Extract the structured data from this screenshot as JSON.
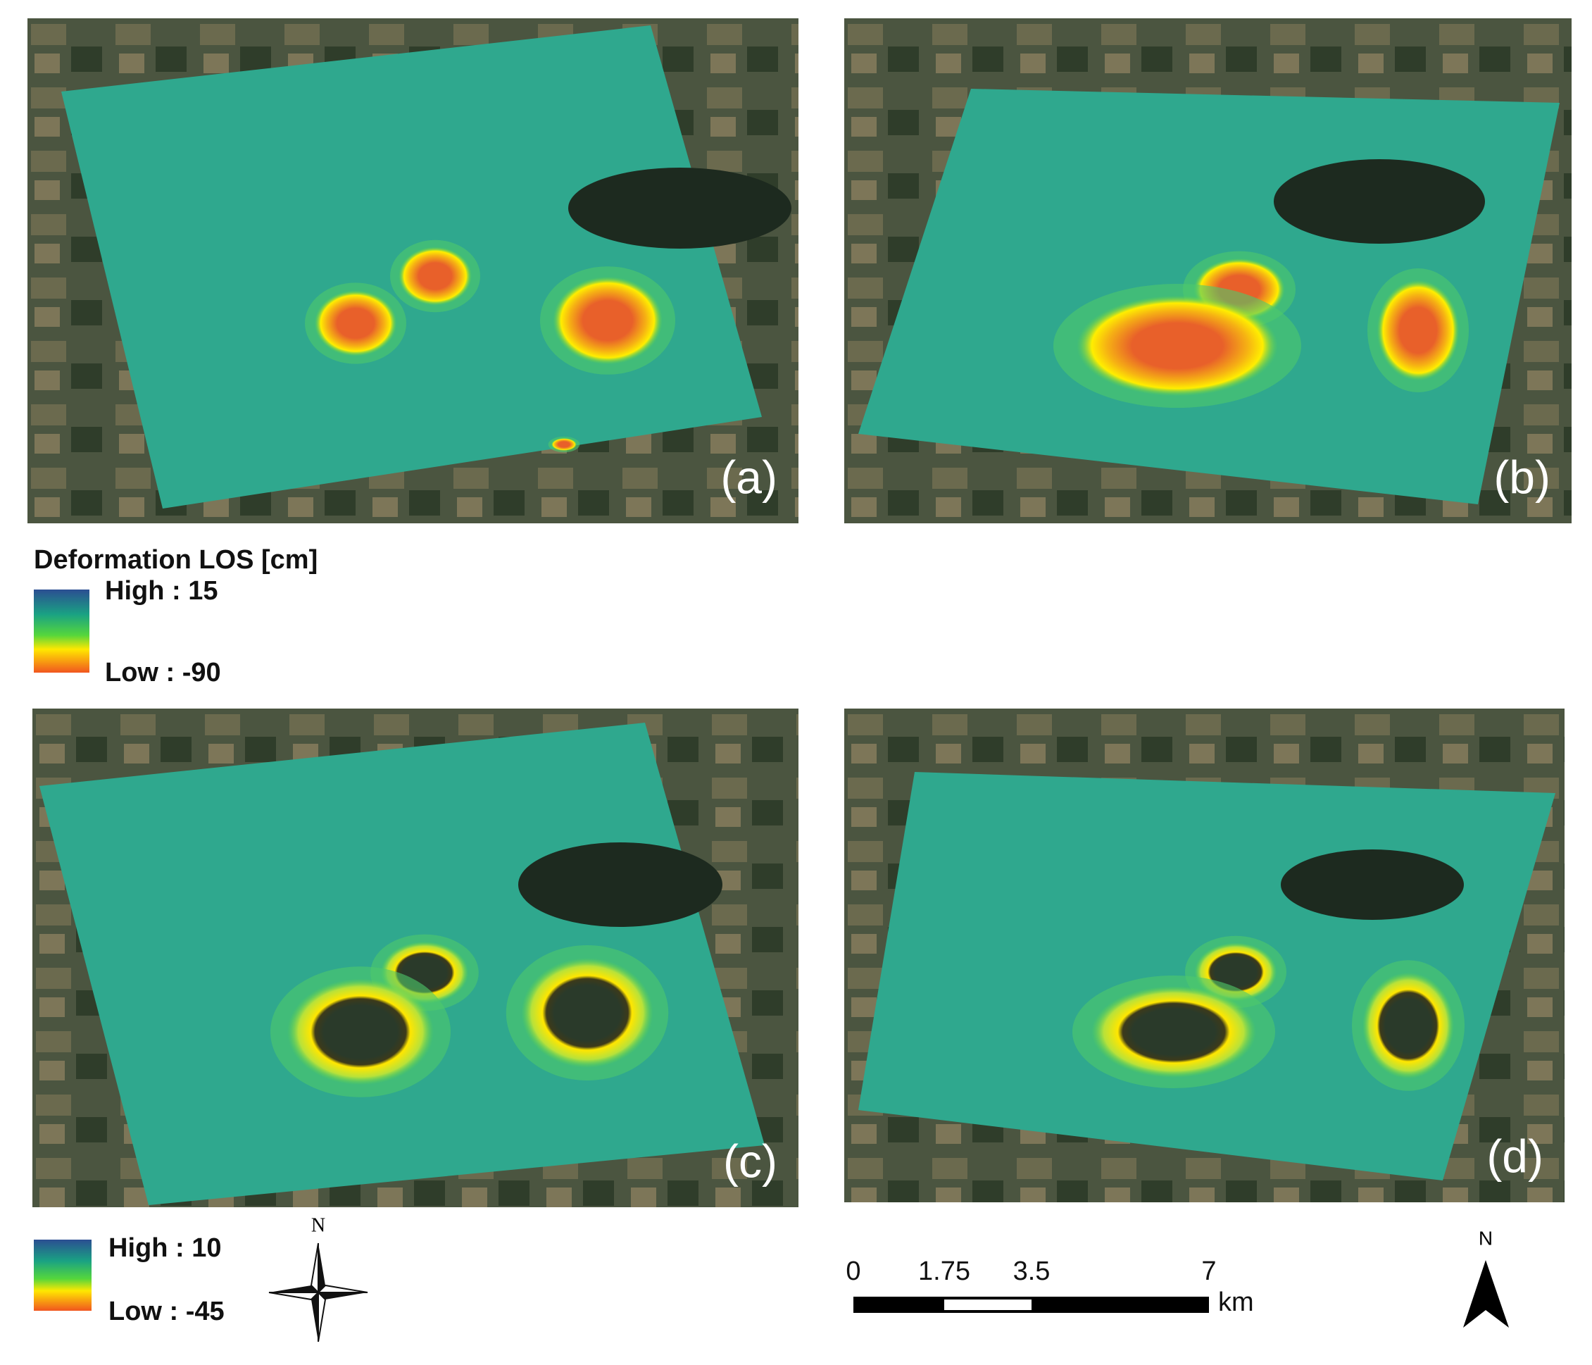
{
  "panels": [
    {
      "label": "(a)"
    },
    {
      "label": "(b)"
    },
    {
      "label": "(c)"
    },
    {
      "label": "(d)"
    }
  ],
  "legend_top": {
    "title": "Deformation LOS [cm]",
    "high": "High : 15",
    "low": "Low : -90"
  },
  "legend_bottom": {
    "high": "High : 10",
    "low": "Low : -45"
  },
  "compass": {
    "label": "N"
  },
  "scale_bar": {
    "ticks": [
      "0",
      "1.75",
      "3.5",
      "7"
    ],
    "unit": "km"
  },
  "north_arrow": {
    "label": "N"
  }
}
